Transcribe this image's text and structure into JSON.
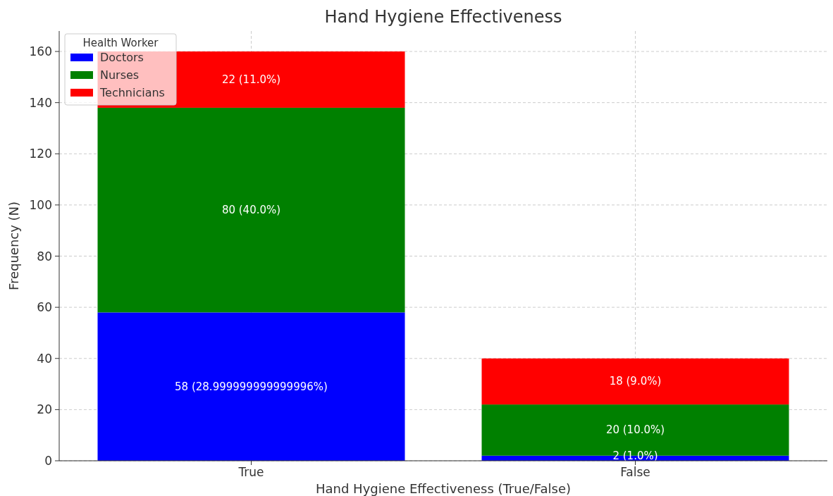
{
  "chart_data": {
    "type": "bar",
    "title": "Hand Hygiene Effectiveness",
    "xlabel": "Hand Hygiene Effectiveness (True/False)",
    "ylabel": "Frequency (N)",
    "legend_title": "Health Worker",
    "categories": [
      "True",
      "False"
    ],
    "stacked": true,
    "series": [
      {
        "name": "Doctors",
        "color": "#0000ff",
        "values": [
          58,
          2
        ],
        "value_labels": [
          "58 (28.999999999999996%)",
          "2 (1.0%)"
        ]
      },
      {
        "name": "Nurses",
        "color": "#008000",
        "values": [
          80,
          20
        ],
        "value_labels": [
          "80 (40.0%)",
          "20 (10.0%)"
        ]
      },
      {
        "name": "Technicians",
        "color": "#ff0000",
        "values": [
          22,
          18
        ],
        "value_labels": [
          "22 (11.0%)",
          "18 (9.0%)"
        ]
      }
    ],
    "ylim": [
      0,
      168
    ],
    "yticks": [
      0,
      20,
      40,
      60,
      80,
      100,
      120,
      140,
      160
    ],
    "grid": true,
    "legend": "top left"
  }
}
